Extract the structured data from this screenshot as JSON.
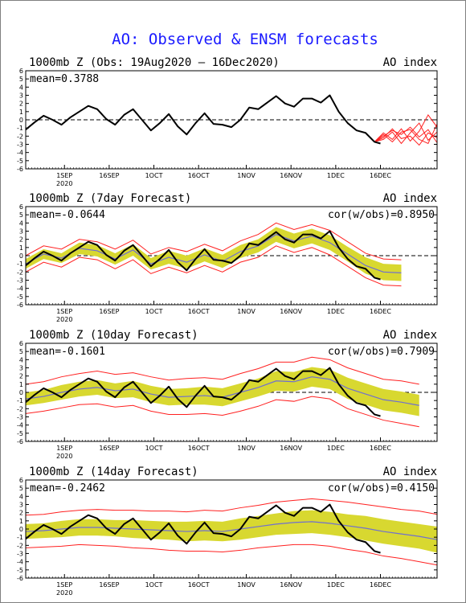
{
  "title": "AO: Observed & ENSM forecasts",
  "x_ticks": [
    "1SEP",
    "16SEP",
    "1OCT",
    "16OCT",
    "1NOV",
    "16NOV",
    "1DEC",
    "16DEC"
  ],
  "x_year_label": "2020",
  "colors": {
    "title": "#1a1aff",
    "observed": "#000000",
    "ensemble_mean": "#6f6fd0",
    "ensemble_spread": "#d8d830",
    "ensemble_extremes": "#ff2020",
    "zero_line": "#000000"
  },
  "chart_data": [
    {
      "type": "line",
      "title": "1000mb Z (Obs: 19Aug2020 – 16Dec2020)",
      "index_label": "AO index",
      "mean_label": "mean=0.3788",
      "cor_label": "",
      "x_range_days": [
        0,
        138
      ],
      "ylim": [
        -6,
        6
      ],
      "yticks": [
        -6,
        -5,
        -4,
        -3,
        -2,
        -1,
        0,
        1,
        2,
        3,
        4,
        5,
        6
      ],
      "observed": {
        "x": [
          0,
          3,
          6,
          9,
          12,
          15,
          18,
          21,
          24,
          27,
          30,
          33,
          36,
          39,
          42,
          45,
          48,
          51,
          54,
          57,
          60,
          63,
          66,
          69,
          72,
          75,
          78,
          81,
          84,
          87,
          90,
          93,
          96,
          99,
          102,
          105,
          108,
          111,
          114,
          117,
          119
        ],
        "y": [
          -1.2,
          -0.3,
          0.5,
          0.0,
          -0.6,
          0.3,
          1.0,
          1.7,
          1.3,
          0.1,
          -0.6,
          0.6,
          1.3,
          0.0,
          -1.3,
          -0.4,
          0.7,
          -0.8,
          -1.8,
          -0.4,
          0.8,
          -0.5,
          -0.6,
          -0.9,
          0.0,
          1.5,
          1.3,
          2.1,
          2.9,
          2.0,
          1.6,
          2.6,
          2.6,
          2.1,
          3.0,
          1.0,
          -0.4,
          -1.3,
          -1.6,
          -2.7,
          -2.9
        ]
      },
      "members": [
        {
          "x": [
            117,
            120,
            123,
            126,
            129,
            132,
            135,
            138
          ],
          "y": [
            -2.7,
            -2.0,
            -1.3,
            -1.8,
            -0.9,
            -2.1,
            -1.2,
            -2.8
          ]
        },
        {
          "x": [
            117,
            120,
            123,
            126,
            129,
            132,
            135,
            138
          ],
          "y": [
            -2.7,
            -2.4,
            -1.5,
            -2.9,
            -1.6,
            -0.4,
            -2.5,
            -1.5
          ]
        },
        {
          "x": [
            117,
            120,
            123,
            126,
            129,
            132,
            135,
            138
          ],
          "y": [
            -2.7,
            -1.6,
            -2.4,
            -1.1,
            -2.6,
            -1.4,
            0.6,
            -0.9
          ]
        },
        {
          "x": [
            117,
            120,
            123,
            126,
            129,
            132,
            135,
            138
          ],
          "y": [
            -2.7,
            -2.2,
            -1.1,
            -2.3,
            -2.0,
            -3.1,
            -1.6,
            -2.2
          ]
        },
        {
          "x": [
            117,
            120,
            123,
            126,
            129,
            132,
            135,
            138
          ],
          "y": [
            -2.7,
            -1.8,
            -2.7,
            -1.5,
            -1.2,
            -2.4,
            -2.9,
            -0.5
          ]
        }
      ]
    },
    {
      "type": "line",
      "title": "1000mb Z (7day Forecast)",
      "index_label": "AO index",
      "mean_label": "mean=-0.0644",
      "cor_label": "cor(w/obs)=0.8950",
      "x_range_days": [
        0,
        138
      ],
      "ylim": [
        -6,
        6
      ],
      "yticks": [
        -6,
        -5,
        -4,
        -3,
        -2,
        -1,
        0,
        1,
        2,
        3,
        4,
        5,
        6
      ],
      "observed": {
        "x": [
          0,
          3,
          6,
          9,
          12,
          15,
          18,
          21,
          24,
          27,
          30,
          33,
          36,
          39,
          42,
          45,
          48,
          51,
          54,
          57,
          60,
          63,
          66,
          69,
          72,
          75,
          78,
          81,
          84,
          87,
          90,
          93,
          96,
          99,
          102,
          105,
          108,
          111,
          114,
          117,
          119
        ],
        "y": [
          -1.2,
          -0.3,
          0.5,
          0.0,
          -0.6,
          0.3,
          1.0,
          1.7,
          1.3,
          0.1,
          -0.6,
          0.6,
          1.3,
          0.0,
          -1.3,
          -0.4,
          0.7,
          -0.8,
          -1.8,
          -0.4,
          0.8,
          -0.5,
          -0.6,
          -0.9,
          0.0,
          1.5,
          1.3,
          2.1,
          2.9,
          2.0,
          1.6,
          2.6,
          2.6,
          2.1,
          3.0,
          1.0,
          -0.4,
          -1.3,
          -1.6,
          -2.7,
          -2.9
        ]
      },
      "forecast": {
        "x": [
          0,
          6,
          12,
          18,
          24,
          30,
          36,
          42,
          48,
          54,
          60,
          66,
          72,
          78,
          84,
          90,
          96,
          102,
          108,
          114,
          120,
          126
        ],
        "mean": [
          -1.0,
          0.2,
          -0.3,
          0.9,
          0.6,
          -0.4,
          0.7,
          -1.0,
          -0.2,
          -0.8,
          0.1,
          -0.7,
          0.5,
          1.2,
          2.6,
          1.8,
          2.4,
          1.6,
          0.2,
          -1.2,
          -2.0,
          -2.1
        ],
        "spread": [
          0.6,
          0.6,
          0.6,
          0.7,
          0.7,
          0.7,
          0.7,
          0.7,
          0.8,
          0.8,
          0.8,
          0.8,
          0.8,
          0.8,
          0.9,
          0.9,
          0.9,
          0.9,
          0.9,
          1.0,
          1.0,
          1.0
        ],
        "envelope": [
          1.0,
          1.0,
          1.1,
          1.1,
          1.1,
          1.2,
          1.2,
          1.2,
          1.2,
          1.3,
          1.3,
          1.3,
          1.3,
          1.4,
          1.4,
          1.4,
          1.4,
          1.5,
          1.5,
          1.5,
          1.6,
          1.6
        ]
      }
    },
    {
      "type": "line",
      "title": "1000mb Z (10day Forecast)",
      "index_label": "AO index",
      "mean_label": "mean=-0.1601",
      "cor_label": "cor(w/obs)=0.7909",
      "x_range_days": [
        0,
        138
      ],
      "ylim": [
        -6,
        6
      ],
      "yticks": [
        -6,
        -5,
        -4,
        -3,
        -2,
        -1,
        0,
        1,
        2,
        3,
        4,
        5,
        6
      ],
      "observed": {
        "x": [
          0,
          3,
          6,
          9,
          12,
          15,
          18,
          21,
          24,
          27,
          30,
          33,
          36,
          39,
          42,
          45,
          48,
          51,
          54,
          57,
          60,
          63,
          66,
          69,
          72,
          75,
          78,
          81,
          84,
          87,
          90,
          93,
          96,
          99,
          102,
          105,
          108,
          111,
          114,
          117,
          119
        ],
        "y": [
          -1.2,
          -0.3,
          0.5,
          0.0,
          -0.6,
          0.3,
          1.0,
          1.7,
          1.3,
          0.1,
          -0.6,
          0.6,
          1.3,
          0.0,
          -1.3,
          -0.4,
          0.7,
          -0.8,
          -1.8,
          -0.4,
          0.8,
          -0.5,
          -0.6,
          -0.9,
          0.0,
          1.5,
          1.3,
          2.1,
          2.9,
          2.0,
          1.6,
          2.6,
          2.6,
          2.1,
          3.0,
          1.0,
          -0.4,
          -1.3,
          -1.6,
          -2.7,
          -2.9
        ]
      },
      "forecast": {
        "x": [
          0,
          6,
          12,
          18,
          24,
          30,
          36,
          42,
          48,
          54,
          60,
          66,
          72,
          78,
          84,
          90,
          96,
          102,
          108,
          114,
          120,
          126,
          132
        ],
        "mean": [
          -0.8,
          -0.5,
          0.0,
          0.4,
          0.6,
          0.2,
          0.4,
          -0.2,
          -0.6,
          -0.5,
          -0.4,
          -0.6,
          0.0,
          0.6,
          1.4,
          1.3,
          1.9,
          1.6,
          0.5,
          -0.2,
          -0.9,
          -1.2,
          -1.6
        ],
        "spread": [
          0.8,
          0.8,
          0.9,
          0.9,
          0.9,
          0.9,
          1.0,
          1.0,
          1.0,
          1.0,
          1.1,
          1.1,
          1.1,
          1.1,
          1.2,
          1.2,
          1.2,
          1.2,
          1.3,
          1.3,
          1.3,
          1.3,
          1.3
        ],
        "envelope": [
          1.8,
          1.8,
          1.9,
          1.9,
          2.0,
          2.0,
          2.0,
          2.1,
          2.1,
          2.2,
          2.2,
          2.2,
          2.3,
          2.3,
          2.3,
          2.4,
          2.4,
          2.4,
          2.5,
          2.5,
          2.5,
          2.6,
          2.6
        ]
      }
    },
    {
      "type": "line",
      "title": "1000mb Z (14day Forecast)",
      "index_label": "AO index",
      "mean_label": "mean=-0.2462",
      "cor_label": "cor(w/obs)=0.4150",
      "x_range_days": [
        0,
        138
      ],
      "ylim": [
        -6,
        6
      ],
      "yticks": [
        -6,
        -5,
        -4,
        -3,
        -2,
        -1,
        0,
        1,
        2,
        3,
        4,
        5,
        6
      ],
      "observed": {
        "x": [
          0,
          3,
          6,
          9,
          12,
          15,
          18,
          21,
          24,
          27,
          30,
          33,
          36,
          39,
          42,
          45,
          48,
          51,
          54,
          57,
          60,
          63,
          66,
          69,
          72,
          75,
          78,
          81,
          84,
          87,
          90,
          93,
          96,
          99,
          102,
          105,
          108,
          111,
          114,
          117,
          119
        ],
        "y": [
          -1.2,
          -0.3,
          0.5,
          0.0,
          -0.6,
          0.3,
          1.0,
          1.7,
          1.3,
          0.1,
          -0.6,
          0.6,
          1.3,
          0.0,
          -1.3,
          -0.4,
          0.7,
          -0.8,
          -1.8,
          -0.4,
          0.8,
          -0.5,
          -0.6,
          -0.9,
          0.0,
          1.5,
          1.3,
          2.1,
          2.9,
          2.0,
          1.6,
          2.6,
          2.6,
          2.1,
          3.0,
          1.0,
          -0.4,
          -1.3,
          -1.6,
          -2.7,
          -2.9
        ]
      },
      "forecast": {
        "x": [
          0,
          6,
          12,
          18,
          24,
          30,
          36,
          42,
          48,
          54,
          60,
          66,
          72,
          78,
          84,
          90,
          96,
          102,
          108,
          114,
          120,
          126,
          132,
          138
        ],
        "mean": [
          -0.3,
          -0.2,
          0.0,
          0.2,
          0.2,
          0.1,
          0.0,
          -0.1,
          -0.2,
          -0.3,
          -0.2,
          -0.3,
          0.0,
          0.3,
          0.6,
          0.8,
          0.9,
          0.7,
          0.4,
          0.1,
          -0.3,
          -0.6,
          -0.9,
          -1.3
        ],
        "spread": [
          0.9,
          0.9,
          1.0,
          1.0,
          1.0,
          1.0,
          1.1,
          1.1,
          1.1,
          1.2,
          1.2,
          1.2,
          1.3,
          1.3,
          1.3,
          1.4,
          1.4,
          1.4,
          1.4,
          1.5,
          1.5,
          1.5,
          1.5,
          1.6
        ],
        "envelope": [
          2.0,
          2.0,
          2.1,
          2.1,
          2.2,
          2.2,
          2.3,
          2.3,
          2.4,
          2.4,
          2.5,
          2.5,
          2.6,
          2.6,
          2.7,
          2.7,
          2.8,
          2.8,
          2.9,
          2.9,
          3.0,
          3.0,
          3.1,
          3.1
        ]
      }
    }
  ]
}
